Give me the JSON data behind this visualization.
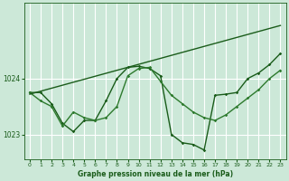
{
  "bg_color": "#cce8d8",
  "grid_color": "#ffffff",
  "line_color_dark": "#1a5c1a",
  "line_color_mid": "#2d7a2d",
  "title": "Graphe pression niveau de la mer (hPa)",
  "xlim": [
    -0.5,
    23.5
  ],
  "ylim": [
    1022.55,
    1025.35
  ],
  "yticks": [
    1023,
    1024
  ],
  "xticks": [
    0,
    1,
    2,
    3,
    4,
    5,
    6,
    7,
    8,
    9,
    10,
    11,
    12,
    13,
    14,
    15,
    16,
    17,
    18,
    19,
    20,
    21,
    22,
    23
  ],
  "series1_x": [
    0,
    1,
    2,
    3,
    4,
    5,
    6,
    7,
    8,
    9,
    10,
    11,
    12,
    13,
    14,
    15,
    16,
    17,
    18,
    19,
    20,
    21,
    22,
    23
  ],
  "series1_y": [
    1023.75,
    1023.75,
    1023.55,
    1023.2,
    1023.05,
    1023.25,
    1023.25,
    1023.6,
    1024.0,
    1024.2,
    1024.22,
    1024.18,
    1024.05,
    1023.0,
    1022.85,
    1022.82,
    1022.72,
    1023.7,
    1023.72,
    1023.75,
    1024.0,
    1024.1,
    1024.25,
    1024.45
  ],
  "series2_x": [
    0,
    1,
    2,
    3,
    4,
    5,
    6,
    7,
    8,
    9,
    10,
    11,
    12,
    13,
    14,
    15,
    16,
    17,
    18,
    19,
    20,
    21,
    22,
    23
  ],
  "series2_y": [
    1023.75,
    1023.6,
    1023.5,
    1023.15,
    1023.4,
    1023.3,
    1023.25,
    1023.3,
    1023.5,
    1024.05,
    1024.18,
    1024.2,
    1023.95,
    1023.7,
    1023.55,
    1023.4,
    1023.3,
    1023.25,
    1023.35,
    1023.5,
    1023.65,
    1023.8,
    1024.0,
    1024.15
  ],
  "series3_x": [
    0,
    23
  ],
  "series3_y": [
    1023.72,
    1024.95
  ]
}
